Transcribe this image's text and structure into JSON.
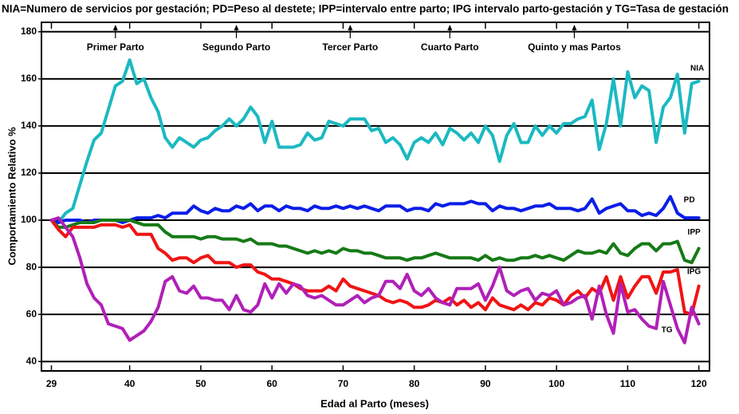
{
  "chart_data": {
    "type": "line",
    "title": "NIA=Numero de servicios por gestación; PD=Peso al destete; IPP=intervalo entre parto; IPG intervalo parto-gestación y TG=Tasa de gestación",
    "xlabel": "Edad al Parto (meses)",
    "ylabel": "Comportamiento Relativo %",
    "x": [
      29,
      30,
      31,
      32,
      33,
      34,
      35,
      36,
      37,
      38,
      39,
      40,
      41,
      42,
      43,
      44,
      45,
      46,
      47,
      48,
      49,
      50,
      51,
      52,
      53,
      54,
      55,
      56,
      57,
      58,
      59,
      60,
      61,
      62,
      63,
      64,
      65,
      66,
      67,
      68,
      69,
      70,
      71,
      72,
      73,
      74,
      75,
      76,
      77,
      78,
      79,
      80,
      81,
      82,
      83,
      84,
      85,
      86,
      87,
      88,
      89,
      90,
      91,
      92,
      93,
      94,
      95,
      96,
      97,
      98,
      99,
      100,
      101,
      102,
      103,
      104,
      105,
      106,
      107,
      108,
      109,
      110,
      111,
      112,
      113,
      114,
      115,
      116,
      117,
      118,
      119,
      120
    ],
    "series": [
      {
        "name": "NIA",
        "color": "#1bb9c1",
        "values": [
          100,
          99,
          103,
          105,
          115,
          125,
          134,
          137,
          147,
          157,
          159,
          168,
          158,
          160,
          152,
          146,
          135,
          131,
          135,
          133,
          131,
          134,
          135,
          138,
          140,
          143,
          140,
          143,
          148,
          144,
          133,
          142,
          131,
          131,
          131,
          132,
          137,
          134,
          135,
          142,
          141,
          140,
          143,
          143,
          143,
          138,
          139,
          133,
          135,
          132,
          126,
          133,
          135,
          133,
          137,
          132,
          139,
          137,
          134,
          137,
          133,
          140,
          136,
          125,
          136,
          141,
          133,
          133,
          140,
          136,
          140,
          137,
          141,
          141,
          143,
          144,
          151,
          130,
          141,
          160,
          140,
          163,
          152,
          157,
          155,
          133,
          148,
          152,
          162,
          137,
          158,
          159
        ]
      },
      {
        "name": "PD",
        "color": "#0b1ee8",
        "values": [
          100,
          99,
          100,
          100,
          100,
          99,
          100,
          100,
          100,
          100,
          99,
          100,
          101,
          101,
          101,
          102,
          101,
          103,
          103,
          103,
          106,
          104,
          103,
          105,
          104,
          104,
          106,
          105,
          107,
          104,
          106,
          106,
          104,
          106,
          105,
          105,
          104,
          106,
          105,
          105,
          106,
          105,
          106,
          105,
          106,
          105,
          104,
          106,
          106,
          106,
          104,
          105,
          105,
          104,
          107,
          106,
          107,
          107,
          107,
          108,
          107,
          107,
          104,
          106,
          105,
          105,
          104,
          105,
          106,
          106,
          107,
          105,
          105,
          105,
          104,
          105,
          109,
          103,
          105,
          106,
          107,
          104,
          104,
          102,
          103,
          102,
          105,
          110,
          103,
          101,
          101,
          101
        ]
      },
      {
        "name": "IPP",
        "color": "#167a16",
        "values": [
          100,
          97,
          97,
          98,
          99,
          99,
          99,
          100,
          100,
          100,
          100,
          100,
          99,
          98,
          98,
          98,
          95,
          93,
          93,
          93,
          93,
          92,
          93,
          93,
          92,
          92,
          92,
          91,
          92,
          90,
          90,
          90,
          89,
          89,
          88,
          87,
          86,
          87,
          86,
          87,
          86,
          88,
          87,
          87,
          86,
          86,
          85,
          84,
          84,
          84,
          83,
          84,
          84,
          85,
          86,
          85,
          84,
          84,
          84,
          84,
          83,
          85,
          83,
          84,
          83,
          83,
          84,
          84,
          85,
          84,
          85,
          84,
          83,
          85,
          87,
          86,
          86,
          87,
          86,
          90,
          86,
          85,
          88,
          90,
          90,
          87,
          90,
          90,
          91,
          83,
          82,
          88
        ]
      },
      {
        "name": "IPG",
        "color": "#f01414",
        "values": [
          100,
          96,
          93,
          97,
          97,
          97,
          97,
          98,
          98,
          98,
          97,
          98,
          94,
          94,
          94,
          88,
          86,
          83,
          84,
          84,
          82,
          84,
          85,
          82,
          82,
          82,
          80,
          81,
          81,
          78,
          77,
          75,
          75,
          74,
          73,
          71,
          70,
          70,
          70,
          72,
          70,
          75,
          72,
          71,
          70,
          69,
          68,
          66,
          65,
          66,
          65,
          63,
          63,
          64,
          66,
          65,
          67,
          64,
          66,
          63,
          65,
          62,
          67,
          64,
          63,
          62,
          64,
          62,
          65,
          64,
          67,
          66,
          64,
          68,
          70,
          67,
          71,
          69,
          76,
          66,
          76,
          67,
          72,
          76,
          76,
          69,
          78,
          78,
          79,
          61,
          60,
          72
        ]
      },
      {
        "name": "TG",
        "color": "#b020b8",
        "values": [
          100,
          101,
          97,
          93,
          84,
          73,
          67,
          64,
          56,
          55,
          54,
          49,
          51,
          53,
          57,
          63,
          74,
          76,
          70,
          69,
          72,
          67,
          67,
          66,
          66,
          62,
          68,
          62,
          61,
          64,
          73,
          67,
          73,
          69,
          73,
          72,
          68,
          67,
          68,
          66,
          64,
          64,
          66,
          68,
          65,
          67,
          68,
          74,
          74,
          71,
          77,
          70,
          68,
          71,
          67,
          65,
          64,
          71,
          71,
          71,
          73,
          66,
          72,
          80,
          70,
          68,
          70,
          71,
          66,
          69,
          68,
          70,
          64,
          65,
          67,
          68,
          58,
          72,
          60,
          52,
          73,
          61,
          62,
          58,
          55,
          54,
          74,
          64,
          54,
          48,
          63,
          56
        ]
      }
    ],
    "annotations": [
      {
        "text": "Primer Parto",
        "x": 38
      },
      {
        "text": "Segundo Parto",
        "x": 55
      },
      {
        "text": "Tercer Parto",
        "x": 71
      },
      {
        "text": "Cuarto Parto",
        "x": 85
      },
      {
        "text": "Quinto y mas Partos",
        "x": 102.5
      }
    ],
    "xlim": [
      27.6,
      121.5
    ],
    "xticks": [
      29,
      40,
      50,
      60,
      70,
      80,
      90,
      100,
      110,
      120
    ],
    "ylim": [
      36,
      184
    ],
    "yticks": [
      40,
      60,
      80,
      100,
      120,
      140,
      160,
      180
    ],
    "grid": true
  }
}
